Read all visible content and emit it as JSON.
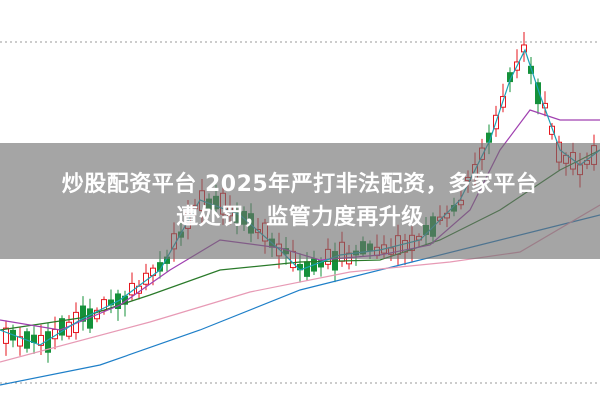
{
  "headline": {
    "line1": "炒股配资平台 2025年严打非法配资，多家平台",
    "line2": "遭处罚，监管力度再升级"
  }
}
